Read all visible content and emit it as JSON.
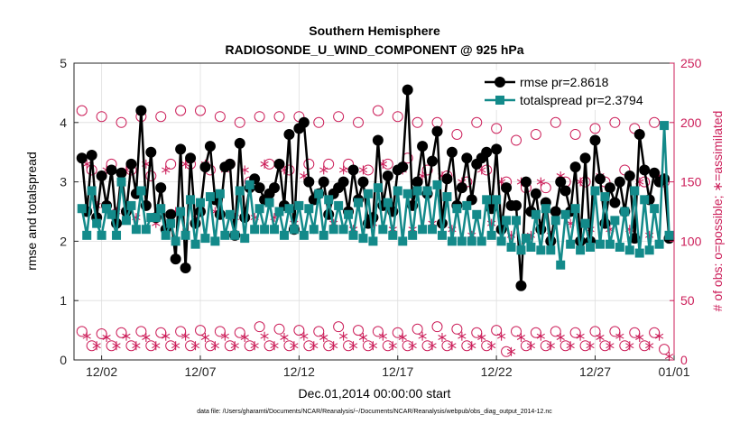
{
  "chart_data": {
    "type": "line",
    "title": "Southern Hemisphere",
    "subtitle": "RADIOSONDE_U_WIND_COMPONENT @ 925 hPa",
    "xlabel": "Dec.01,2014 00:00:00 start",
    "ylabel_left": "rmse and totalspread",
    "ylabel_right": "# of obs: o=possible; ∗=assimilated",
    "footnote": "data file: /Users/gharamti/Documents/NCAR/Reanalysis/~/Documents/NCAR/Reanalysis/webpub/obs_diag_output_2014-12.nc",
    "x_unit": "day of December 2014",
    "xlim": [
      0.6,
      31.0
    ],
    "x_tick_values": [
      2,
      7,
      12,
      17,
      22,
      27,
      31
    ],
    "x_tick_labels": [
      "12/02",
      "12/07",
      "12/12",
      "12/17",
      "12/22",
      "12/27",
      "01/01"
    ],
    "ylim_left": [
      0,
      5
    ],
    "y_ticks_left": [
      "0",
      "1",
      "2",
      "3",
      "4",
      "5"
    ],
    "ylim_right": [
      0,
      250
    ],
    "y_ticks_right": [
      "0",
      "50",
      "100",
      "150",
      "200",
      "250"
    ],
    "grid": true,
    "legend_position": "top-right",
    "colors": {
      "rmse": "#000000",
      "totalspread": "#138a8a",
      "obs": "#cc1f5a"
    },
    "series": [
      {
        "name": "rmse pr=2.8618",
        "axis": "left",
        "marker": "circle",
        "x": [
          1.0,
          1.25,
          1.5,
          1.75,
          2.0,
          2.25,
          2.5,
          2.75,
          3.0,
          3.25,
          3.5,
          3.75,
          4.0,
          4.25,
          4.5,
          4.75,
          5.0,
          5.25,
          5.5,
          5.75,
          6.0,
          6.25,
          6.5,
          6.75,
          7.0,
          7.25,
          7.5,
          7.75,
          8.0,
          8.25,
          8.5,
          8.75,
          9.0,
          9.25,
          9.5,
          9.75,
          10.0,
          10.25,
          10.5,
          10.75,
          11.0,
          11.25,
          11.5,
          11.75,
          12.0,
          12.25,
          12.5,
          12.75,
          13.0,
          13.25,
          13.5,
          13.75,
          14.0,
          14.25,
          14.5,
          14.75,
          15.0,
          15.25,
          15.5,
          15.75,
          16.0,
          16.25,
          16.5,
          16.75,
          17.0,
          17.25,
          17.5,
          17.75,
          18.0,
          18.25,
          18.5,
          18.75,
          19.0,
          19.25,
          19.5,
          19.75,
          20.0,
          20.25,
          20.5,
          20.75,
          21.0,
          21.25,
          21.5,
          21.75,
          22.0,
          22.25,
          22.5,
          22.75,
          23.0,
          23.25,
          23.5,
          23.75,
          24.0,
          24.25,
          24.5,
          24.75,
          25.0,
          25.25,
          25.5,
          25.75,
          26.0,
          26.25,
          26.5,
          26.75,
          27.0,
          27.25,
          27.5,
          27.75,
          28.0,
          28.25,
          28.5,
          28.75,
          29.0,
          29.25,
          29.5,
          29.75,
          30.0,
          30.25,
          30.5,
          30.75
        ],
        "values": [
          3.4,
          2.5,
          3.45,
          2.4,
          3.1,
          2.6,
          3.2,
          2.3,
          3.15,
          2.5,
          3.3,
          2.8,
          4.2,
          2.6,
          3.5,
          2.4,
          2.9,
          2.2,
          2.45,
          1.7,
          3.55,
          1.55,
          3.4,
          2.3,
          2.5,
          3.25,
          3.6,
          2.7,
          2.45,
          3.25,
          3.3,
          2.1,
          3.65,
          2.4,
          2.9,
          3.05,
          2.9,
          2.7,
          2.8,
          2.9,
          3.3,
          2.6,
          3.8,
          2.2,
          3.9,
          4.0,
          3.0,
          2.7,
          2.8,
          3.0,
          2.45,
          2.8,
          2.9,
          3.0,
          2.5,
          3.2,
          2.7,
          3.0,
          2.3,
          2.4,
          3.7,
          2.6,
          3.1,
          2.5,
          3.2,
          3.25,
          4.55,
          2.6,
          3.0,
          3.6,
          2.8,
          3.35,
          3.85,
          2.3,
          3.05,
          3.5,
          2.6,
          2.9,
          3.4,
          2.7,
          3.3,
          3.4,
          3.5,
          2.55,
          3.55,
          2.2,
          2.9,
          2.6,
          2.6,
          1.25,
          3.0,
          2.5,
          2.8,
          2.2,
          2.65,
          2.0,
          2.5,
          3.0,
          2.85,
          2.5,
          3.25,
          2.0,
          3.4,
          2.0,
          3.7,
          3.05,
          2.3,
          2.9,
          2.65,
          3.0,
          2.5,
          3.1,
          2.05,
          3.8,
          3.2,
          2.7,
          3.15,
          3.0,
          3.05,
          2.05
        ],
        "markers_filled": true
      },
      {
        "name": "totalspread pr=2.3794",
        "axis": "left",
        "marker": "square",
        "x": [
          1.0,
          1.25,
          1.5,
          1.75,
          2.0,
          2.25,
          2.5,
          2.75,
          3.0,
          3.25,
          3.5,
          3.75,
          4.0,
          4.25,
          4.5,
          4.75,
          5.0,
          5.25,
          5.5,
          5.75,
          6.0,
          6.25,
          6.5,
          6.75,
          7.0,
          7.25,
          7.5,
          7.75,
          8.0,
          8.25,
          8.5,
          8.75,
          9.0,
          9.25,
          9.5,
          9.75,
          10.0,
          10.25,
          10.5,
          10.75,
          11.0,
          11.25,
          11.5,
          11.75,
          12.0,
          12.25,
          12.5,
          12.75,
          13.0,
          13.25,
          13.5,
          13.75,
          14.0,
          14.25,
          14.5,
          14.75,
          15.0,
          15.25,
          15.5,
          15.75,
          16.0,
          16.25,
          16.5,
          16.75,
          17.0,
          17.25,
          17.5,
          17.75,
          18.0,
          18.25,
          18.5,
          18.75,
          19.0,
          19.25,
          19.5,
          19.75,
          20.0,
          20.25,
          20.5,
          20.75,
          21.0,
          21.25,
          21.5,
          21.75,
          22.0,
          22.25,
          22.5,
          22.75,
          23.0,
          23.25,
          23.5,
          23.75,
          24.0,
          24.25,
          24.5,
          24.75,
          25.0,
          25.25,
          25.5,
          25.75,
          26.0,
          26.25,
          26.5,
          26.75,
          27.0,
          27.25,
          27.5,
          27.75,
          28.0,
          28.25,
          28.5,
          28.75,
          29.0,
          29.25,
          29.5,
          29.75,
          30.0,
          30.25,
          30.5,
          30.75
        ],
        "values": [
          2.55,
          2.1,
          2.85,
          2.3,
          2.1,
          2.55,
          2.45,
          2.1,
          3.0,
          2.35,
          2.6,
          2.2,
          2.85,
          2.2,
          2.4,
          2.4,
          2.55,
          2.1,
          2.3,
          2.0,
          2.5,
          2.1,
          2.7,
          1.95,
          2.65,
          2.05,
          2.75,
          2.0,
          2.8,
          2.1,
          2.45,
          2.1,
          2.85,
          2.05,
          2.95,
          2.2,
          2.55,
          2.2,
          2.65,
          2.2,
          2.5,
          2.1,
          2.55,
          2.2,
          2.6,
          2.1,
          2.55,
          2.2,
          2.8,
          2.1,
          2.7,
          2.2,
          2.6,
          2.2,
          2.45,
          2.1,
          2.65,
          2.05,
          2.8,
          2.0,
          2.9,
          2.2,
          2.65,
          2.1,
          2.85,
          2.0,
          2.8,
          2.1,
          2.85,
          2.2,
          2.85,
          2.2,
          2.95,
          2.1,
          2.75,
          2.0,
          2.55,
          2.0,
          2.6,
          2.0,
          2.45,
          2.0,
          2.7,
          2.1,
          2.7,
          2.0,
          2.35,
          1.9,
          2.35,
          1.85,
          2.05,
          1.9,
          2.45,
          1.85,
          2.55,
          1.85,
          2.35,
          1.6,
          2.45,
          1.95,
          2.55,
          1.85,
          2.3,
          1.9,
          2.85,
          1.95,
          2.75,
          1.95,
          2.35,
          1.9,
          2.5,
          1.85,
          2.85,
          1.8,
          2.7,
          1.85,
          2.55,
          1.95,
          3.95,
          2.1
        ],
        "markers_filled": true
      },
      {
        "name": "obs possible",
        "axis": "right",
        "marker": "open-circle",
        "x": [
          1.0,
          1.5,
          2.0,
          2.5,
          3.0,
          3.5,
          4.0,
          4.5,
          5.0,
          5.5,
          6.0,
          6.5,
          7.0,
          7.5,
          8.0,
          8.5,
          9.0,
          9.5,
          10.0,
          10.5,
          11.0,
          11.5,
          12.0,
          12.5,
          13.0,
          13.5,
          14.0,
          14.5,
          15.0,
          15.5,
          16.0,
          16.5,
          17.0,
          17.5,
          18.0,
          18.5,
          19.0,
          19.5,
          20.0,
          20.5,
          21.0,
          21.5,
          22.0,
          22.5,
          23.0,
          23.5,
          24.0,
          24.5,
          25.0,
          25.5,
          26.0,
          26.5,
          27.0,
          27.5,
          28.0,
          28.5,
          29.0,
          29.5,
          30.0,
          30.5
        ],
        "values": [
          210,
          160,
          205,
          165,
          200,
          160,
          205,
          155,
          205,
          165,
          210,
          165,
          210,
          160,
          205,
          165,
          200,
          150,
          205,
          165,
          205,
          160,
          205,
          165,
          200,
          165,
          205,
          165,
          200,
          160,
          210,
          165,
          205,
          170,
          200,
          160,
          200,
          155,
          190,
          150,
          200,
          160,
          195,
          150,
          185,
          145,
          190,
          145,
          200,
          150,
          190,
          150,
          195,
          150,
          200,
          160,
          195,
          150,
          200,
          150
        ],
        "low_x": [
          1.0,
          1.5,
          2.0,
          2.5,
          3.0,
          3.5,
          4.0,
          4.5,
          5.0,
          5.5,
          6.0,
          6.5,
          7.0,
          7.5,
          8.0,
          8.5,
          9.0,
          9.5,
          10.0,
          10.5,
          11.0,
          11.5,
          12.0,
          12.5,
          13.0,
          13.5,
          14.0,
          14.5,
          15.0,
          15.5,
          16.0,
          16.5,
          17.0,
          17.5,
          18.0,
          18.5,
          19.0,
          19.5,
          20.0,
          20.5,
          21.0,
          21.5,
          22.0,
          22.5,
          23.0,
          23.5,
          24.0,
          24.5,
          25.0,
          25.5,
          26.0,
          26.5,
          27.0,
          27.5,
          28.0,
          28.5,
          29.0,
          29.5,
          30.0,
          30.5
        ],
        "low_values": [
          24,
          12,
          22,
          12,
          23,
          12,
          24,
          12,
          23,
          12,
          24,
          12,
          25,
          12,
          24,
          12,
          23,
          12,
          28,
          12,
          26,
          12,
          25,
          12,
          24,
          12,
          28,
          12,
          25,
          12,
          24,
          12,
          23,
          12,
          26,
          12,
          28,
          12,
          26,
          12,
          23,
          12,
          25,
          7,
          24,
          12,
          23,
          12,
          24,
          12,
          23,
          12,
          24,
          12,
          24,
          12,
          23,
          12,
          23,
          9
        ]
      },
      {
        "name": "obs assimilated",
        "axis": "right",
        "marker": "asterisk",
        "x": [
          1.25,
          1.75,
          2.25,
          2.75,
          3.25,
          3.75,
          4.25,
          4.75,
          5.25,
          5.75,
          6.25,
          6.75,
          7.25,
          7.75,
          8.25,
          8.75,
          9.25,
          9.75,
          10.25,
          10.75,
          11.25,
          11.75,
          12.25,
          12.75,
          13.25,
          13.75,
          14.25,
          14.75,
          15.25,
          15.75,
          16.25,
          16.75,
          17.25,
          17.75,
          18.25,
          18.75,
          19.25,
          19.75,
          20.25,
          20.75,
          21.25,
          21.75,
          22.25,
          22.75,
          23.25,
          23.75,
          24.25,
          24.75,
          25.25,
          25.75,
          26.25,
          26.75,
          27.25,
          27.75,
          28.25,
          28.75,
          29.25,
          29.75,
          30.25,
          30.75
        ],
        "values": [
          165,
          130,
          160,
          125,
          160,
          120,
          165,
          115,
          160,
          125,
          165,
          120,
          165,
          125,
          160,
          120,
          160,
          120,
          165,
          120,
          160,
          115,
          155,
          110,
          160,
          115,
          160,
          110,
          160,
          115,
          165,
          110,
          160,
          110,
          155,
          115,
          155,
          110,
          150,
          105,
          160,
          115,
          150,
          105,
          150,
          105,
          150,
          105,
          155,
          115,
          150,
          110,
          155,
          110,
          150,
          110,
          150,
          105,
          155,
          105
        ],
        "low_x": [
          1.25,
          1.75,
          2.25,
          2.75,
          3.25,
          3.75,
          4.25,
          4.75,
          5.25,
          5.75,
          6.25,
          6.75,
          7.25,
          7.75,
          8.25,
          8.75,
          9.25,
          9.75,
          10.25,
          10.75,
          11.25,
          11.75,
          12.25,
          12.75,
          13.25,
          13.75,
          14.25,
          14.75,
          15.25,
          15.75,
          16.25,
          16.75,
          17.25,
          17.75,
          18.25,
          18.75,
          19.25,
          19.75,
          20.25,
          20.75,
          21.25,
          21.75,
          22.25,
          22.75,
          23.25,
          23.75,
          24.25,
          24.75,
          25.25,
          25.75,
          26.25,
          26.75,
          27.25,
          27.75,
          28.25,
          28.75,
          29.25,
          29.75,
          30.25,
          30.75
        ],
        "low_values": [
          20,
          12,
          19,
          12,
          20,
          12,
          19,
          12,
          20,
          12,
          20,
          12,
          19,
          12,
          20,
          12,
          19,
          12,
          20,
          12,
          19,
          12,
          20,
          12,
          19,
          12,
          20,
          12,
          19,
          12,
          20,
          12,
          19,
          12,
          20,
          12,
          19,
          12,
          20,
          12,
          19,
          12,
          20,
          7,
          19,
          12,
          20,
          12,
          19,
          12,
          20,
          12,
          19,
          12,
          20,
          12,
          19,
          12,
          20,
          3
        ]
      }
    ]
  }
}
